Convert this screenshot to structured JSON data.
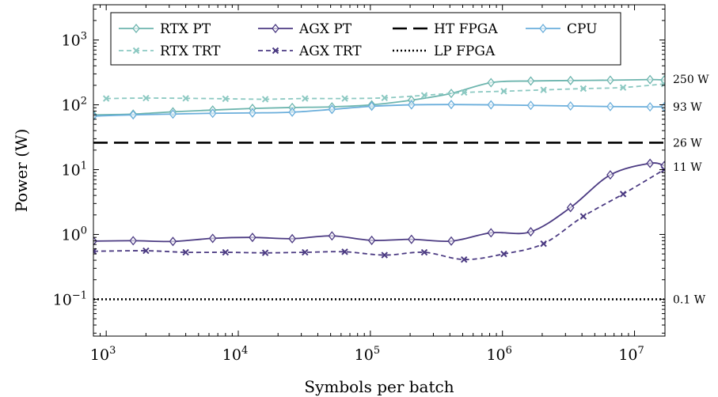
{
  "chart_data": {
    "type": "line",
    "xlabel": "Symbols per batch",
    "ylabel": "Power (W)",
    "xscale": "log",
    "yscale": "log",
    "xlim": [
      800,
      17000000
    ],
    "ylim": [
      0.027,
      3500
    ],
    "x_ticks": [
      {
        "base": "10",
        "exp": "3",
        "value": 1000
      },
      {
        "base": "10",
        "exp": "4",
        "value": 10000
      },
      {
        "base": "10",
        "exp": "5",
        "value": 100000
      },
      {
        "base": "10",
        "exp": "6",
        "value": 1000000
      },
      {
        "base": "10",
        "exp": "7",
        "value": 10000000
      }
    ],
    "y_ticks": [
      {
        "base": "10",
        "exp": "−1",
        "value": 0.1
      },
      {
        "base": "10",
        "exp": "0",
        "value": 1
      },
      {
        "base": "10",
        "exp": "1",
        "value": 10
      },
      {
        "base": "10",
        "exp": "2",
        "value": 100
      },
      {
        "base": "10",
        "exp": "3",
        "value": 1000
      }
    ],
    "grid": false,
    "legend_position": "top",
    "series": [
      {
        "name": "RTX PT",
        "color": "#6db5ae",
        "dash": "solid",
        "marker": "diamond",
        "x": [
          800,
          1600,
          3200,
          6400,
          12800,
          25600,
          51200,
          102400,
          204800,
          409600,
          819200,
          1638400,
          3276800,
          6553600,
          13107200,
          16777216
        ],
        "y": [
          70,
          72,
          78,
          83,
          88,
          91,
          93,
          100,
          118,
          150,
          220,
          233,
          237,
          240,
          245,
          242
        ]
      },
      {
        "name": "AGX PT",
        "color": "#4b3a82",
        "dash": "solid",
        "marker": "diamond",
        "x": [
          800,
          1600,
          3200,
          6400,
          12800,
          25600,
          51200,
          102400,
          204800,
          409600,
          819200,
          1638400,
          3276800,
          6553600,
          13107200,
          16777216
        ],
        "y": [
          0.79,
          0.8,
          0.78,
          0.87,
          0.9,
          0.86,
          0.95,
          0.81,
          0.84,
          0.79,
          1.06,
          1.1,
          2.6,
          8.3,
          12.5,
          11.5
        ]
      },
      {
        "name": "HT FPGA",
        "color": "#000000",
        "dash": "longdash",
        "marker": "none",
        "x": [
          800,
          16777216
        ],
        "y": [
          26,
          26
        ]
      },
      {
        "name": "CPU",
        "color": "#6aaedb",
        "dash": "solid",
        "marker": "diamond",
        "x": [
          800,
          1600,
          3200,
          6400,
          12800,
          25600,
          51200,
          102400,
          204800,
          409600,
          819200,
          1638400,
          3276800,
          6553600,
          13107200,
          16777216
        ],
        "y": [
          67,
          70,
          72,
          74,
          75,
          77,
          85,
          95,
          100,
          101,
          100,
          98,
          96,
          94,
          93,
          93
        ]
      },
      {
        "name": "RTX TRT",
        "color": "#8cc9c2",
        "dash": "dashed",
        "marker": "x",
        "x": [
          1000,
          2000,
          4000,
          8000,
          16000,
          32000,
          64000,
          128000,
          256000,
          512000,
          1024000,
          2048000,
          4096000,
          8192000,
          16777216
        ],
        "y": [
          125,
          127,
          126,
          124,
          122,
          125,
          125,
          128,
          140,
          155,
          162,
          170,
          178,
          185,
          210
        ]
      },
      {
        "name": "AGX TRT",
        "color": "#4b3a82",
        "dash": "dashed",
        "marker": "x",
        "x": [
          800,
          2000,
          4000,
          8000,
          16000,
          32000,
          64000,
          128000,
          256000,
          512000,
          1024000,
          2048000,
          4096000,
          8192000,
          16777216
        ],
        "y": [
          0.55,
          0.56,
          0.53,
          0.53,
          0.52,
          0.53,
          0.54,
          0.48,
          0.53,
          0.41,
          0.5,
          0.72,
          1.9,
          4.2,
          10
        ]
      },
      {
        "name": "LP FPGA",
        "color": "#000000",
        "dash": "dotted",
        "marker": "none",
        "x": [
          800,
          16777216
        ],
        "y": [
          0.1,
          0.1
        ]
      }
    ],
    "annotations": [
      {
        "text": "250 W",
        "y": 250
      },
      {
        "text": "93 W",
        "y": 93
      },
      {
        "text": "26 W",
        "y": 26
      },
      {
        "text": "11 W",
        "y": 11
      },
      {
        "text": "0.1 W",
        "y": 0.1
      }
    ]
  }
}
